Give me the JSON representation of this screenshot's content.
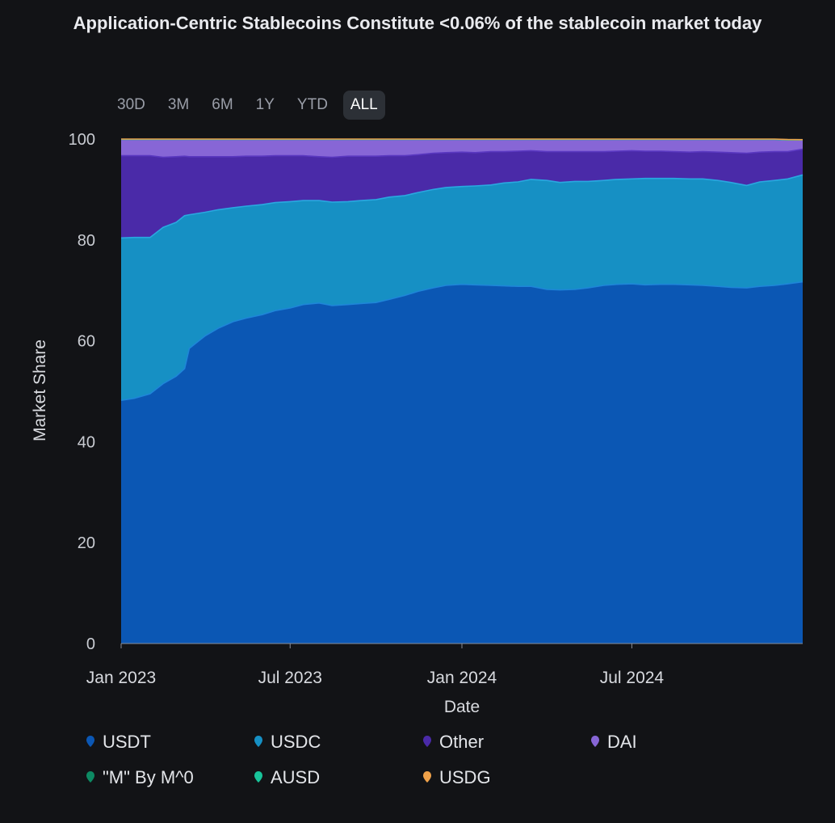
{
  "title": "Application-Centric Stablecoins Constitute <0.06% of the stablecoin market today",
  "range_buttons": [
    {
      "label": "30D",
      "active": false
    },
    {
      "label": "3M",
      "active": false
    },
    {
      "label": "6M",
      "active": false
    },
    {
      "label": "1Y",
      "active": false
    },
    {
      "label": "YTD",
      "active": false
    },
    {
      "label": "ALL",
      "active": true
    }
  ],
  "chart_data": {
    "type": "area",
    "stacked": true,
    "title": "Application-Centric Stablecoins Constitute <0.06% of the stablecoin market today",
    "xlabel": "Date",
    "ylabel": "Market Share",
    "ylim": [
      0,
      100
    ],
    "xlim": [
      "2023-01-01",
      "2024-12-31"
    ],
    "x_ticks": [
      "Jan 2023",
      "Jul 2023",
      "Jan 2024",
      "Jul 2024"
    ],
    "x_tick_dates": [
      "2023-01-01",
      "2023-07-01",
      "2024-01-01",
      "2024-07-01"
    ],
    "y_ticks": [
      0,
      20,
      40,
      60,
      80,
      100
    ],
    "grid": true,
    "legend_position": "bottom",
    "x": [
      "2023-01-01",
      "2023-01-15",
      "2023-02-01",
      "2023-02-15",
      "2023-03-01",
      "2023-03-10",
      "2023-03-15",
      "2023-04-01",
      "2023-04-15",
      "2023-05-01",
      "2023-05-15",
      "2023-06-01",
      "2023-06-15",
      "2023-07-01",
      "2023-07-15",
      "2023-08-01",
      "2023-08-15",
      "2023-09-01",
      "2023-09-15",
      "2023-10-01",
      "2023-10-15",
      "2023-11-01",
      "2023-11-15",
      "2023-12-01",
      "2023-12-15",
      "2024-01-01",
      "2024-01-15",
      "2024-02-01",
      "2024-02-15",
      "2024-03-01",
      "2024-03-15",
      "2024-04-01",
      "2024-04-15",
      "2024-05-01",
      "2024-05-15",
      "2024-06-01",
      "2024-06-15",
      "2024-07-01",
      "2024-07-15",
      "2024-08-01",
      "2024-08-15",
      "2024-09-01",
      "2024-09-15",
      "2024-10-01",
      "2024-10-15",
      "2024-11-01",
      "2024-11-15",
      "2024-12-01",
      "2024-12-15",
      "2024-12-31"
    ],
    "series": [
      {
        "name": "USDT",
        "color": "#0b57b4",
        "values": [
          48.2,
          48.6,
          49.5,
          51.5,
          53.0,
          54.5,
          58.5,
          61.0,
          62.5,
          63.8,
          64.5,
          65.2,
          66.0,
          66.5,
          67.2,
          67.5,
          67.0,
          67.2,
          67.4,
          67.6,
          68.2,
          69.0,
          69.8,
          70.5,
          71.0,
          71.2,
          71.1,
          71.0,
          70.9,
          70.8,
          70.8,
          70.2,
          70.1,
          70.2,
          70.5,
          71.0,
          71.2,
          71.3,
          71.1,
          71.2,
          71.2,
          71.1,
          71.0,
          70.8,
          70.6,
          70.5,
          70.8,
          71.0,
          71.3,
          71.7
        ]
      },
      {
        "name": "USDC",
        "color": "#1690c4",
        "values": [
          32.2,
          31.9,
          31.0,
          31.0,
          30.5,
          30.3,
          26.5,
          24.5,
          23.5,
          22.6,
          22.2,
          21.8,
          21.4,
          21.1,
          20.6,
          20.3,
          20.5,
          20.4,
          20.4,
          20.4,
          20.3,
          19.8,
          19.6,
          19.5,
          19.4,
          19.4,
          19.6,
          19.9,
          20.4,
          20.7,
          21.2,
          21.6,
          21.3,
          21.4,
          21.1,
          20.8,
          20.8,
          20.8,
          21.1,
          21.0,
          21.0,
          21.0,
          21.1,
          21.0,
          20.8,
          20.3,
          20.7,
          20.8,
          20.8,
          21.2
        ]
      },
      {
        "name": "Other",
        "color": "#4a2aa8",
        "values": [
          16.3,
          16.2,
          16.2,
          13.9,
          13.0,
          11.8,
          11.5,
          11.0,
          10.5,
          10.1,
          9.9,
          9.6,
          9.3,
          9.1,
          8.9,
          8.7,
          8.9,
          9.0,
          8.8,
          8.6,
          8.2,
          7.9,
          7.5,
          7.2,
          6.9,
          6.8,
          6.6,
          6.6,
          6.2,
          6.1,
          5.7,
          5.7,
          6.1,
          5.9,
          5.9,
          5.7,
          5.6,
          5.6,
          5.4,
          5.4,
          5.3,
          5.3,
          5.4,
          5.6,
          5.9,
          6.4,
          5.9,
          5.7,
          5.4,
          5.1
        ]
      },
      {
        "name": "DAI",
        "color": "#8766d6",
        "values": [
          3.25,
          3.25,
          3.25,
          3.55,
          3.45,
          3.35,
          3.45,
          3.45,
          3.45,
          3.45,
          3.35,
          3.35,
          3.25,
          3.25,
          3.25,
          3.45,
          3.55,
          3.35,
          3.35,
          3.35,
          3.25,
          3.25,
          3.05,
          2.75,
          2.65,
          2.55,
          2.65,
          2.45,
          2.45,
          2.35,
          2.25,
          2.45,
          2.45,
          2.45,
          2.45,
          2.45,
          2.35,
          2.25,
          2.35,
          2.35,
          2.45,
          2.55,
          2.45,
          2.55,
          2.65,
          2.75,
          2.55,
          2.45,
          2.35,
          1.81
        ]
      },
      {
        "name": "\"M\" By M^0",
        "color": "#0d8a63",
        "values": [
          0,
          0,
          0,
          0,
          0,
          0,
          0,
          0,
          0,
          0,
          0,
          0,
          0,
          0,
          0,
          0,
          0,
          0,
          0,
          0,
          0,
          0,
          0,
          0,
          0,
          0,
          0,
          0,
          0,
          0,
          0,
          0,
          0,
          0,
          0,
          0,
          0,
          0,
          0,
          0,
          0,
          0,
          0,
          0,
          0,
          0,
          0,
          0,
          0,
          0.02
        ]
      },
      {
        "name": "AUSD",
        "color": "#18c49a",
        "values": [
          0,
          0,
          0,
          0,
          0,
          0,
          0,
          0,
          0,
          0,
          0,
          0,
          0,
          0,
          0,
          0,
          0,
          0,
          0,
          0,
          0,
          0,
          0,
          0,
          0,
          0,
          0,
          0,
          0,
          0,
          0,
          0,
          0,
          0,
          0,
          0,
          0,
          0,
          0,
          0,
          0,
          0,
          0,
          0,
          0,
          0,
          0,
          0,
          0,
          0.03
        ]
      },
      {
        "name": "USDG",
        "color": "#f0a24a",
        "values": [
          0.05,
          0.05,
          0.05,
          0.05,
          0.05,
          0.05,
          0.05,
          0.05,
          0.05,
          0.05,
          0.05,
          0.05,
          0.05,
          0.05,
          0.05,
          0.05,
          0.05,
          0.05,
          0.05,
          0.05,
          0.05,
          0.05,
          0.05,
          0.05,
          0.05,
          0.05,
          0.05,
          0.05,
          0.05,
          0.05,
          0.05,
          0.05,
          0.05,
          0.05,
          0.05,
          0.05,
          0.05,
          0.05,
          0.05,
          0.05,
          0.05,
          0.05,
          0.05,
          0.05,
          0.05,
          0.05,
          0.05,
          0.05,
          0.05,
          0.01
        ]
      }
    ]
  }
}
